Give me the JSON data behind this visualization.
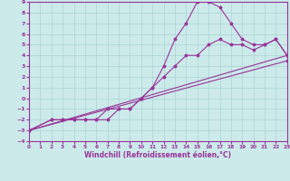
{
  "xlabel": "Windchill (Refroidissement éolien,°C)",
  "xlim": [
    0,
    23
  ],
  "ylim": [
    -4,
    9
  ],
  "xticks": [
    0,
    1,
    2,
    3,
    4,
    5,
    6,
    7,
    8,
    9,
    10,
    11,
    12,
    13,
    14,
    15,
    16,
    17,
    18,
    19,
    20,
    21,
    22,
    23
  ],
  "yticks": [
    -4,
    -3,
    -2,
    -1,
    0,
    1,
    2,
    3,
    4,
    5,
    6,
    7,
    8,
    9
  ],
  "bg_color": "#cceaea",
  "line_color": "#993399",
  "grid_color": "#aad4d4",
  "line1_x": [
    0,
    2,
    3,
    4,
    5,
    6,
    7,
    8,
    9,
    10,
    11,
    12,
    13,
    14,
    15,
    16,
    17,
    18,
    19,
    20,
    21,
    22,
    23
  ],
  "line1_y": [
    -3,
    -2,
    -2,
    -2,
    -2,
    -2,
    -2,
    -1,
    -1,
    0,
    1,
    3,
    5.5,
    7,
    9,
    9,
    8.5,
    7,
    5.5,
    5,
    5,
    5.5,
    4
  ],
  "line2_x": [
    0,
    23
  ],
  "line2_y": [
    -3,
    4
  ],
  "line3_x": [
    0,
    23
  ],
  "line3_y": [
    -3,
    3.5
  ],
  "line4_x": [
    0,
    2,
    3,
    4,
    5,
    6,
    7,
    8,
    9,
    10,
    11,
    12,
    13,
    14,
    15,
    16,
    17,
    18,
    19,
    20,
    21,
    22,
    23
  ],
  "line4_y": [
    -3,
    -2,
    -2,
    -2,
    -2,
    -2,
    -1,
    -1,
    -1,
    0,
    1,
    2,
    3,
    4,
    4,
    5,
    5.5,
    5,
    5,
    4.5,
    5,
    5.5,
    4
  ]
}
